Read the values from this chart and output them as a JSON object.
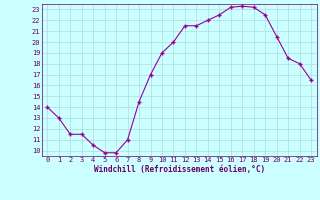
{
  "x": [
    0,
    1,
    2,
    3,
    4,
    5,
    6,
    7,
    8,
    9,
    10,
    11,
    12,
    13,
    14,
    15,
    16,
    17,
    18,
    19,
    20,
    21,
    22,
    23
  ],
  "y": [
    14,
    13,
    11.5,
    11.5,
    10.5,
    9.8,
    9.8,
    11,
    14.5,
    17,
    19,
    20,
    21.5,
    21.5,
    22,
    22.5,
    23.2,
    23.3,
    23.2,
    22.5,
    20.5,
    18.5,
    18,
    16.5
  ],
  "line_color": "#990099",
  "marker_color": "#990099",
  "bg_color": "#ccffff",
  "grid_color": "#aadddd",
  "xlabel": "Windchill (Refroidissement éolien,°C)",
  "xlabel_color": "#660066",
  "tick_color": "#660066",
  "ylim": [
    9.5,
    23.5
  ],
  "xlim": [
    -0.5,
    23.5
  ],
  "yticks": [
    10,
    11,
    12,
    13,
    14,
    15,
    16,
    17,
    18,
    19,
    20,
    21,
    22,
    23
  ],
  "xticks": [
    0,
    1,
    2,
    3,
    4,
    5,
    6,
    7,
    8,
    9,
    10,
    11,
    12,
    13,
    14,
    15,
    16,
    17,
    18,
    19,
    20,
    21,
    22,
    23
  ],
  "tick_fontsize": 5.0,
  "xlabel_fontsize": 5.5
}
